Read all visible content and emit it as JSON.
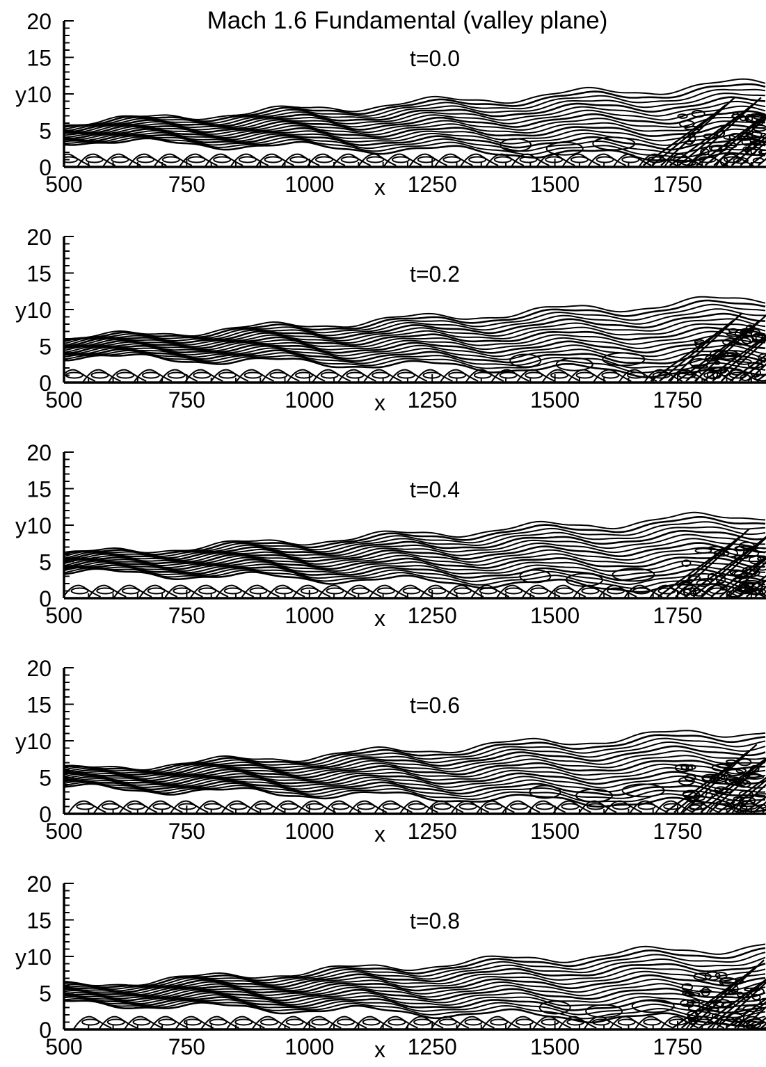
{
  "figure": {
    "title": "Mach 1.6 Fundamental (valley plane)"
  },
  "chart_data": [
    {
      "type": "contour",
      "time_label": "t=0.0",
      "xlabel": "x",
      "ylabel": "y",
      "xlim": [
        500,
        1930
      ],
      "ylim": [
        0,
        20
      ],
      "xticks": [
        "500",
        "750",
        "1000",
        "1250",
        "1500",
        "1750"
      ],
      "yticks": [
        "0",
        "5",
        "10",
        "15",
        "20"
      ],
      "grid": false,
      "legend": "none"
    },
    {
      "type": "contour",
      "time_label": "t=0.2",
      "xlabel": "x",
      "ylabel": "y",
      "xlim": [
        500,
        1930
      ],
      "ylim": [
        0,
        20
      ],
      "xticks": [
        "500",
        "750",
        "1000",
        "1250",
        "1500",
        "1750"
      ],
      "yticks": [
        "0",
        "5",
        "10",
        "15",
        "20"
      ],
      "grid": false,
      "legend": "none"
    },
    {
      "type": "contour",
      "time_label": "t=0.4",
      "xlabel": "x",
      "ylabel": "y",
      "xlim": [
        500,
        1930
      ],
      "ylim": [
        0,
        20
      ],
      "xticks": [
        "500",
        "750",
        "1000",
        "1250",
        "1500",
        "1750"
      ],
      "yticks": [
        "0",
        "5",
        "10",
        "15",
        "20"
      ],
      "grid": false,
      "legend": "none"
    },
    {
      "type": "contour",
      "time_label": "t=0.6",
      "xlabel": "x",
      "ylabel": "y",
      "xlim": [
        500,
        1930
      ],
      "ylim": [
        0,
        20
      ],
      "xticks": [
        "500",
        "750",
        "1000",
        "1250",
        "1500",
        "1750"
      ],
      "yticks": [
        "0",
        "5",
        "10",
        "15",
        "20"
      ],
      "grid": false,
      "legend": "none"
    },
    {
      "type": "contour",
      "time_label": "t=0.8",
      "xlabel": "x",
      "ylabel": "y",
      "xlim": [
        500,
        1930
      ],
      "ylim": [
        0,
        20
      ],
      "xticks": [
        "500",
        "750",
        "1000",
        "1250",
        "1500",
        "1750"
      ],
      "yticks": [
        "0",
        "5",
        "10",
        "15",
        "20"
      ],
      "grid": false,
      "legend": "none"
    }
  ]
}
